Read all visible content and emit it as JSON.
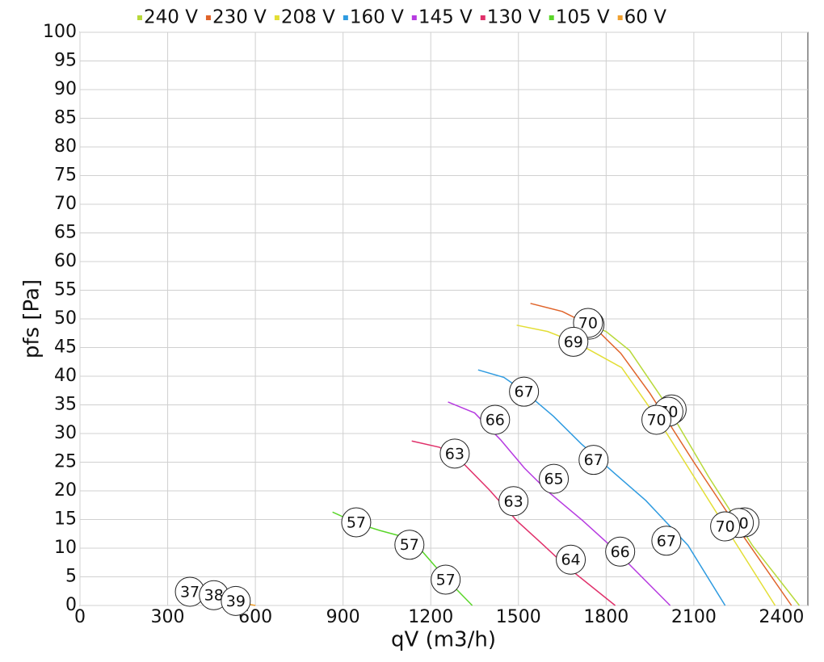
{
  "chart_data": {
    "type": "line",
    "xlabel": "qV (m3/h)",
    "ylabel": "pfs [Pa]",
    "xlim": [
      0,
      2490
    ],
    "ylim": [
      0,
      100
    ],
    "xticks": [
      0,
      300,
      600,
      900,
      1200,
      1500,
      1800,
      2100,
      2400
    ],
    "yticks": [
      0,
      5,
      10,
      15,
      20,
      25,
      30,
      35,
      40,
      45,
      50,
      55,
      60,
      65,
      70,
      75,
      80,
      85,
      90,
      95,
      100
    ],
    "grid": true,
    "legend": "top",
    "series": [
      {
        "name": "240 V",
        "color": "#b8d93a",
        "x": [
          1715,
          1800,
          1880,
          2000,
          2150,
          2300,
          2461
        ],
        "values": [
          49.5,
          47.8,
          44.5,
          35.5,
          22.5,
          10.5,
          0
        ],
        "points": [
          {
            "x": 1743,
            "y": 49,
            "label": 70
          },
          {
            "x": 2024,
            "y": 34.2,
            "label": 70
          },
          {
            "x": 2273,
            "y": 14.5,
            "label": 70
          }
        ]
      },
      {
        "name": "230 V",
        "color": "#e0642a",
        "x": [
          1541,
          1650,
          1760,
          1850,
          1950,
          2100,
          2250,
          2434
        ],
        "values": [
          52.7,
          51.3,
          48.5,
          44,
          37,
          25,
          13.5,
          0
        ],
        "points": [
          {
            "x": 1738,
            "y": 49.3,
            "label": 70
          },
          {
            "x": 2013,
            "y": 33.8,
            "label": 70
          },
          {
            "x": 2254,
            "y": 14.4,
            "label": 70
          }
        ]
      },
      {
        "name": "208 V",
        "color": "#e3de35",
        "x": [
          1494,
          1600,
          1700,
          1853,
          1978,
          2100,
          2212,
          2378
        ],
        "values": [
          48.9,
          47.8,
          45.8,
          41.5,
          32.4,
          22.5,
          13.4,
          0
        ],
        "points": [
          {
            "x": 1688,
            "y": 46,
            "label": 69
          },
          {
            "x": 1972,
            "y": 32.4,
            "label": 70
          },
          {
            "x": 2207,
            "y": 13.8,
            "label": 70
          }
        ]
      },
      {
        "name": "160 V",
        "color": "#2f9be0",
        "x": [
          1362,
          1450,
          1521,
          1620,
          1715,
          1830,
          1936,
          2080,
          2207
        ],
        "values": [
          41.1,
          39.8,
          37.3,
          33,
          28.2,
          23,
          18.3,
          10.5,
          0
        ],
        "points": [
          {
            "x": 1519,
            "y": 37.3,
            "label": 67
          },
          {
            "x": 1757,
            "y": 25.4,
            "label": 67
          },
          {
            "x": 2006,
            "y": 11.3,
            "label": 67
          }
        ]
      },
      {
        "name": "145 V",
        "color": "#b63be0",
        "x": [
          1259,
          1350,
          1439,
          1520,
          1605,
          1720,
          1826,
          2019
        ],
        "values": [
          35.5,
          33.6,
          28.9,
          24,
          19.7,
          14.8,
          9.9,
          0
        ],
        "points": [
          {
            "x": 1420,
            "y": 32.4,
            "label": 66
          },
          {
            "x": 1621,
            "y": 22.1,
            "label": 65
          },
          {
            "x": 1848,
            "y": 9.4,
            "label": 66
          }
        ]
      },
      {
        "name": "130 V",
        "color": "#e0306a",
        "x": [
          1135,
          1230,
          1315,
          1400,
          1494,
          1580,
          1660,
          1831
        ],
        "values": [
          28.7,
          27.6,
          24.6,
          20.2,
          14.8,
          10.8,
          7,
          0
        ],
        "points": [
          {
            "x": 1282,
            "y": 26.5,
            "label": 63
          },
          {
            "x": 1483,
            "y": 18.2,
            "label": 63
          },
          {
            "x": 1679,
            "y": 8,
            "label": 64
          }
        ]
      },
      {
        "name": "105 V",
        "color": "#5ad62a",
        "x": [
          864,
          950,
          1025,
          1090,
          1163,
          1250,
          1342
        ],
        "values": [
          16.3,
          14.3,
          13.1,
          12.2,
          9.9,
          4.8,
          0
        ],
        "points": [
          {
            "x": 945,
            "y": 14.5,
            "label": 57
          },
          {
            "x": 1127,
            "y": 10.6,
            "label": 57
          },
          {
            "x": 1251,
            "y": 4.5,
            "label": 57
          }
        ]
      },
      {
        "name": "60 V",
        "color": "#f0a030",
        "x": [
          560,
          600
        ],
        "values": [
          0.4,
          0
        ],
        "points": [
          {
            "x": 376,
            "y": 2.4,
            "label": 37
          },
          {
            "x": 458,
            "y": 1.8,
            "label": 38
          },
          {
            "x": 533,
            "y": 0.8,
            "label": 39
          }
        ]
      }
    ]
  }
}
